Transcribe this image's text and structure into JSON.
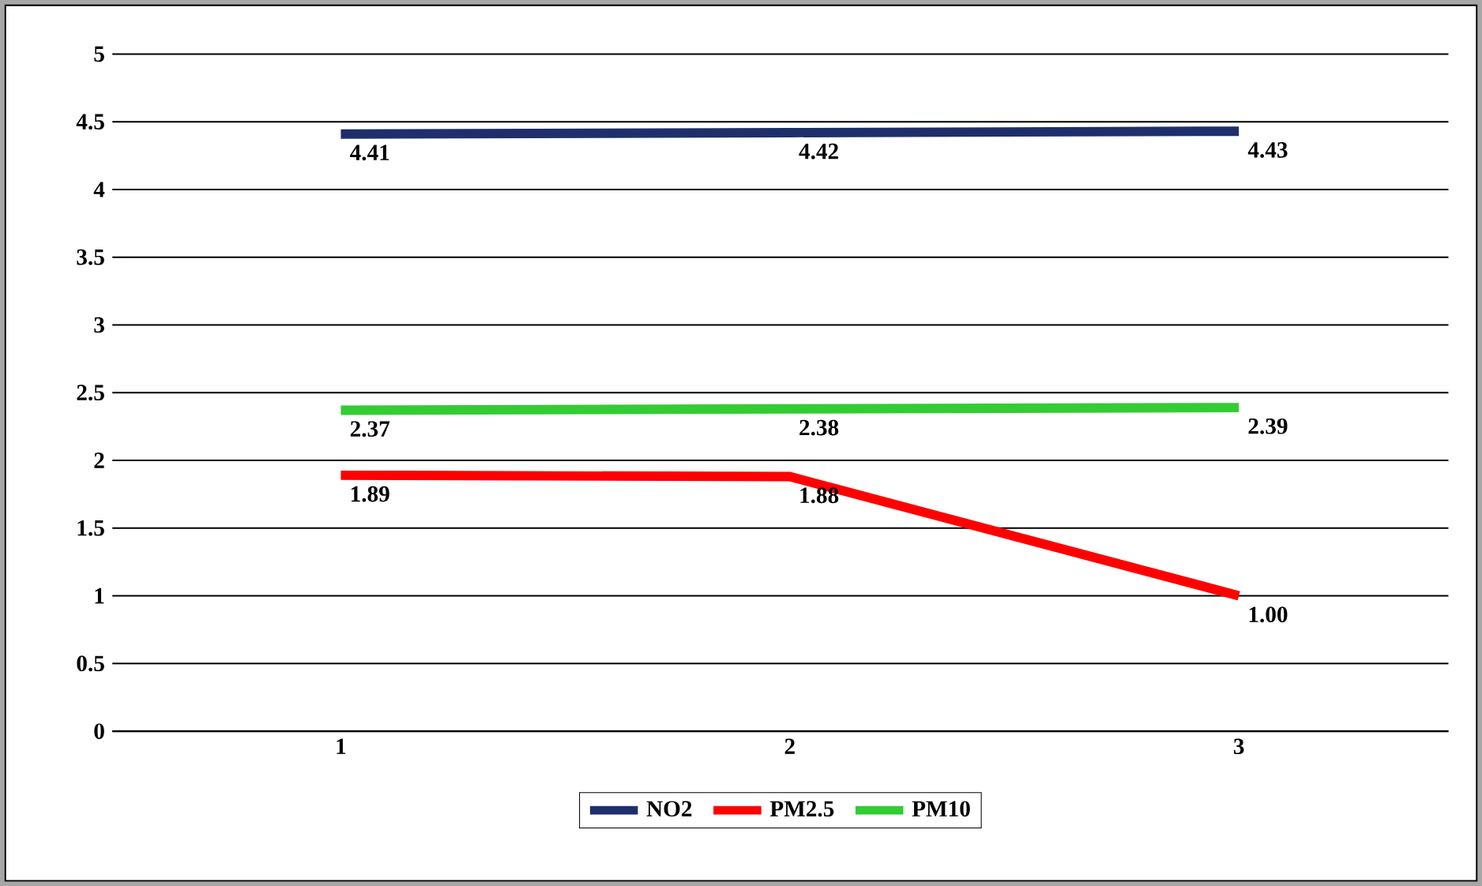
{
  "chart_data": {
    "type": "line",
    "categories": [
      "1",
      "2",
      "3"
    ],
    "series": [
      {
        "name": "NO2",
        "color": "#1f2f6b",
        "values": [
          4.41,
          4.42,
          4.43
        ],
        "value_labels": [
          "4.41",
          "4.42",
          "4.43"
        ]
      },
      {
        "name": "PM2.5",
        "color": "#ff0000",
        "values": [
          1.89,
          1.88,
          1.0
        ],
        "value_labels": [
          "1.89",
          "1.88",
          "1.00"
        ]
      },
      {
        "name": "PM10",
        "color": "#33cc33",
        "values": [
          2.37,
          2.38,
          2.39
        ],
        "value_labels": [
          "2.37",
          "2.38",
          "2.39"
        ]
      }
    ],
    "ylim": [
      0,
      5
    ],
    "yticks": [
      0,
      0.5,
      1,
      1.5,
      2,
      2.5,
      3,
      3.5,
      4,
      4.5,
      5
    ],
    "grid": "y",
    "legend": "bottom",
    "marker": "none",
    "line_style": "solid"
  }
}
